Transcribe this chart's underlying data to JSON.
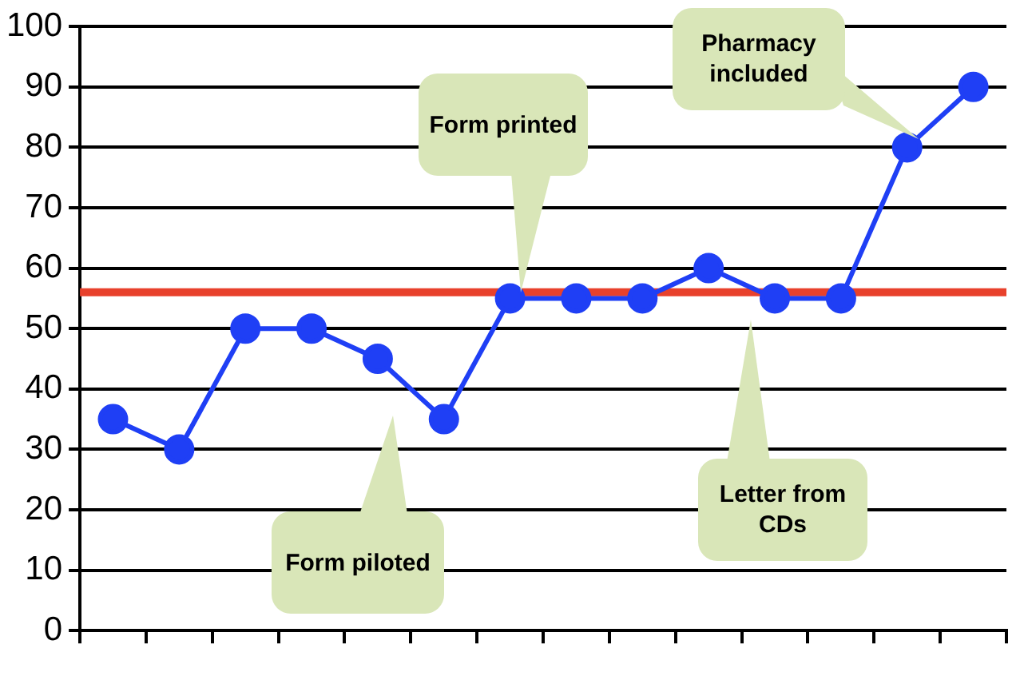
{
  "chart_data": {
    "type": "line",
    "categories": [
      null,
      null,
      null,
      null,
      null,
      null,
      null,
      null,
      null,
      null,
      null,
      null,
      null,
      null
    ],
    "series": [
      {
        "color": "#1f3ff5",
        "values": [
          35,
          30,
          50,
          50,
          45,
          35,
          55,
          55,
          55,
          60,
          55,
          55,
          80,
          90
        ]
      }
    ],
    "ylim": [
      0,
      100
    ],
    "yticks": [
      0,
      10,
      20,
      30,
      40,
      50,
      60,
      70,
      80,
      90,
      100
    ],
    "grid": "y",
    "legend": false,
    "marker": "circle",
    "line_style": "solid",
    "ref_lines": [
      {
        "axis": "y",
        "value": 56,
        "color": "#e8412c"
      }
    ],
    "annotations": [
      "Form piloted",
      "Form printed",
      "Pharmacy included",
      "Letter from CDs"
    ]
  }
}
